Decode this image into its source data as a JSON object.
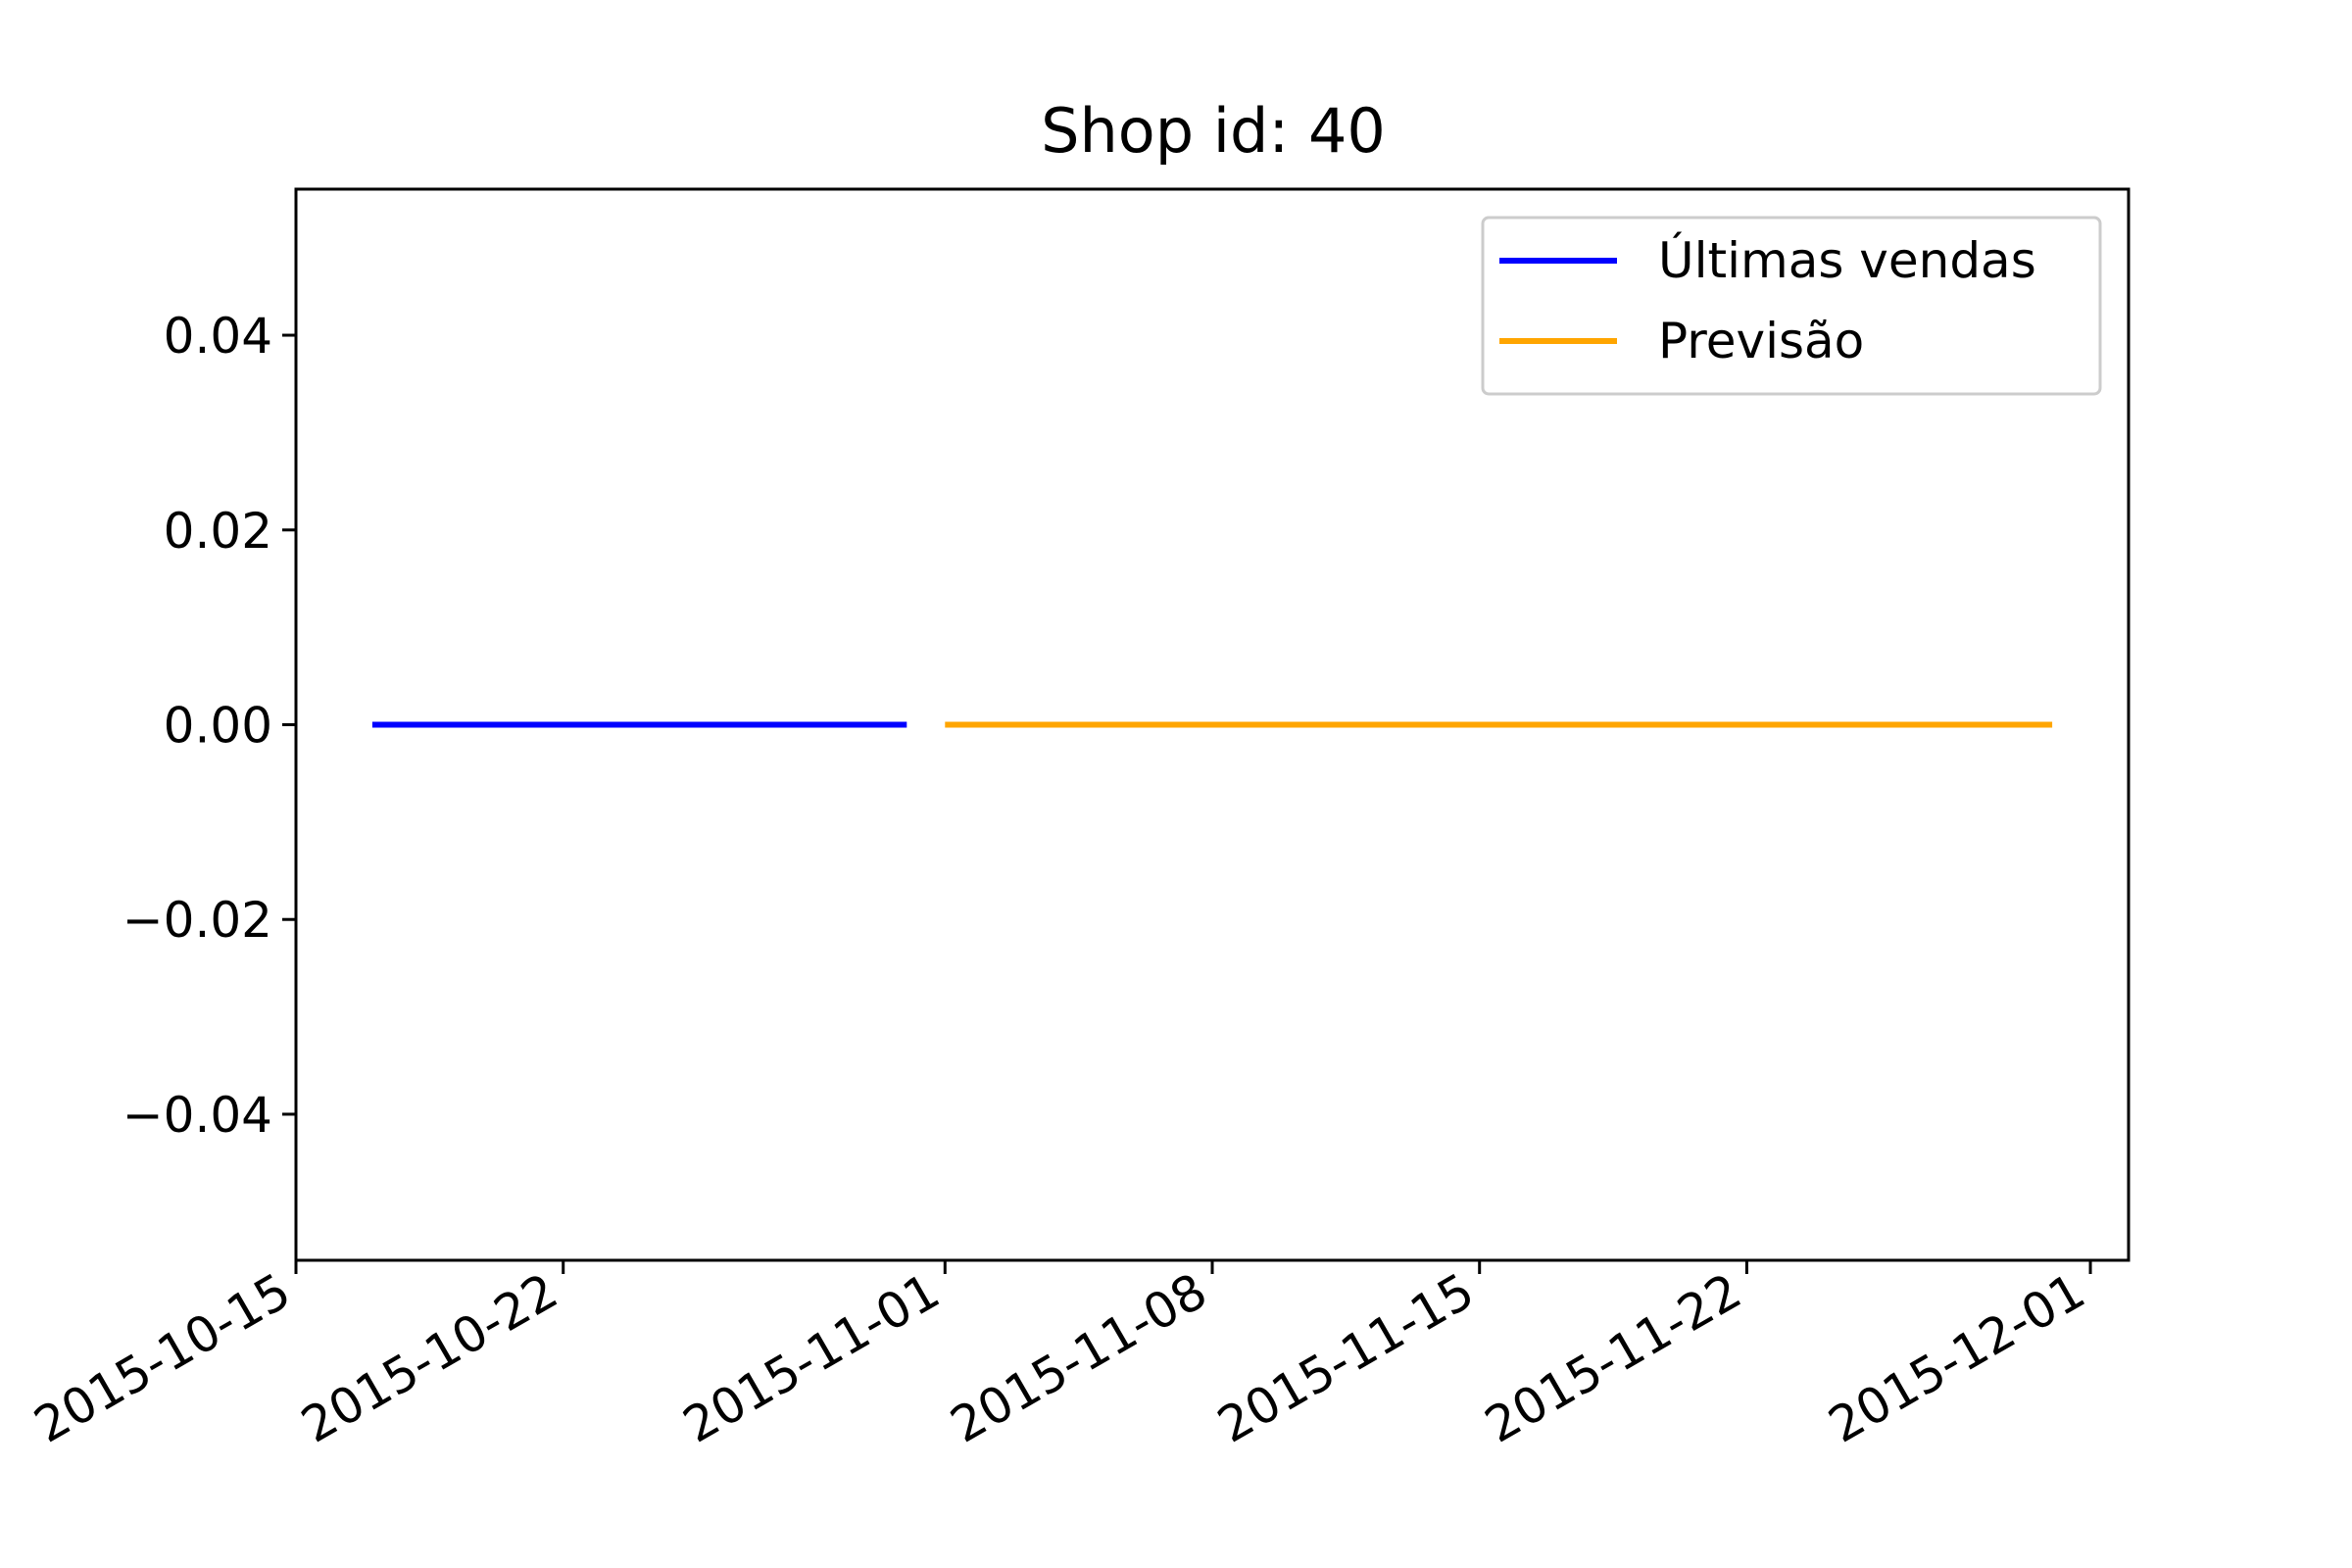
{
  "chart_data": {
    "type": "line",
    "title": "Shop id: 40",
    "xlabel": "",
    "ylabel": "",
    "x_axis_type": "date",
    "xlim": [
      "2015-10-15",
      "2015-12-02"
    ],
    "ylim": [
      -0.055,
      0.055
    ],
    "x_ticks": [
      "2015-10-15",
      "2015-10-22",
      "2015-11-01",
      "2015-11-08",
      "2015-11-15",
      "2015-11-22",
      "2015-12-01"
    ],
    "y_ticks": [
      -0.04,
      -0.02,
      0.0,
      0.02,
      0.04
    ],
    "y_tick_labels": [
      "−0.04",
      "−0.02",
      "0.00",
      "0.02",
      "0.04"
    ],
    "grid": false,
    "legend_position": "upper right",
    "series": [
      {
        "name": "Últimas vendas",
        "color": "#0000ff",
        "x": [
          "2015-10-17",
          "2015-10-18",
          "2015-10-19",
          "2015-10-20",
          "2015-10-21",
          "2015-10-22",
          "2015-10-23",
          "2015-10-24",
          "2015-10-25",
          "2015-10-26",
          "2015-10-27",
          "2015-10-28",
          "2015-10-29",
          "2015-10-30",
          "2015-10-31"
        ],
        "y": [
          0,
          0,
          0,
          0,
          0,
          0,
          0,
          0,
          0,
          0,
          0,
          0,
          0,
          0,
          0
        ]
      },
      {
        "name": "Previsão",
        "color": "#ffa500",
        "x": [
          "2015-11-01",
          "2015-11-02",
          "2015-11-03",
          "2015-11-04",
          "2015-11-05",
          "2015-11-06",
          "2015-11-07",
          "2015-11-08",
          "2015-11-09",
          "2015-11-10",
          "2015-11-11",
          "2015-11-12",
          "2015-11-13",
          "2015-11-14",
          "2015-11-15",
          "2015-11-16",
          "2015-11-17",
          "2015-11-18",
          "2015-11-19",
          "2015-11-20",
          "2015-11-21",
          "2015-11-22",
          "2015-11-23",
          "2015-11-24",
          "2015-11-25",
          "2015-11-26",
          "2015-11-27",
          "2015-11-28",
          "2015-11-29",
          "2015-11-30"
        ],
        "y": [
          0,
          0,
          0,
          0,
          0,
          0,
          0,
          0,
          0,
          0,
          0,
          0,
          0,
          0,
          0,
          0,
          0,
          0,
          0,
          0,
          0,
          0,
          0,
          0,
          0,
          0,
          0,
          0,
          0,
          0
        ]
      }
    ]
  }
}
